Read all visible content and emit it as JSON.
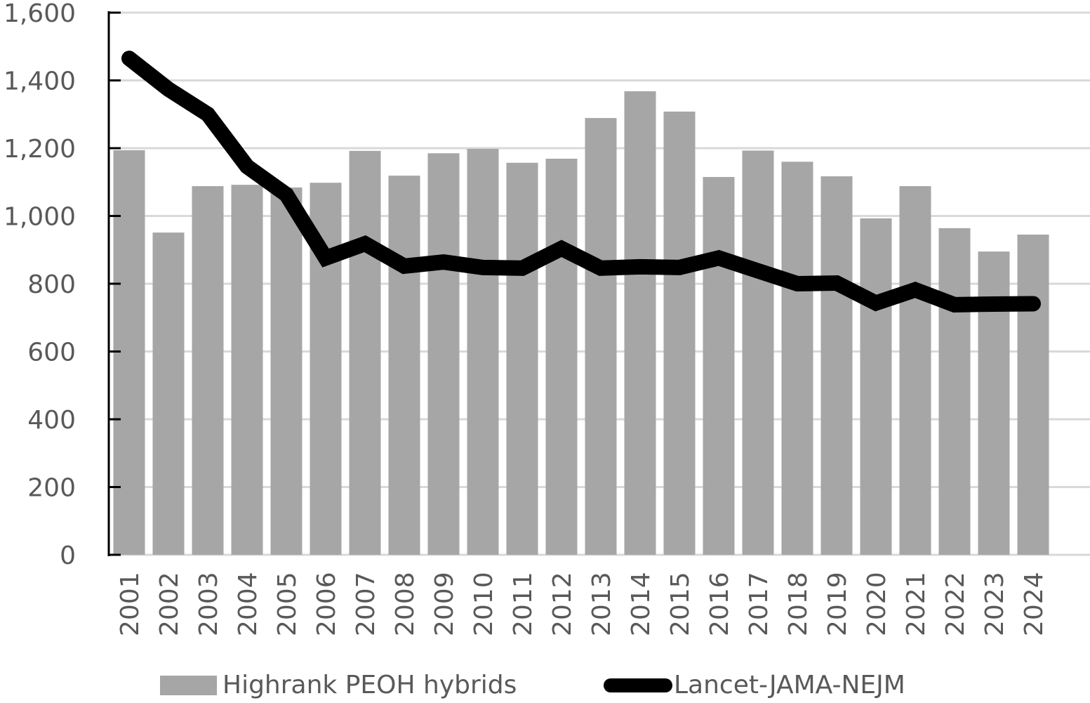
{
  "chart_data": {
    "type": "bar",
    "title": "",
    "xlabel": "",
    "ylabel": "",
    "ylim": [
      0,
      1600
    ],
    "yticks": [
      0,
      200,
      400,
      600,
      800,
      1000,
      1200,
      1400,
      1600
    ],
    "ytick_labels": [
      "0",
      "200",
      "400",
      "600",
      "800",
      "1,000",
      "1,200",
      "1,400",
      "1,600"
    ],
    "grid": true,
    "legend_position": "bottom",
    "categories": [
      "2001",
      "2002",
      "2003",
      "2004",
      "2005",
      "2006",
      "2007",
      "2008",
      "2009",
      "2010",
      "2011",
      "2012",
      "2013",
      "2014",
      "2015",
      "2016",
      "2017",
      "2018",
      "2019",
      "2020",
      "2021",
      "2022",
      "2023",
      "2024"
    ],
    "series": [
      {
        "name": "Highrank PEOH hybrids",
        "type": "bar",
        "color": "#A6A6A6",
        "values": [
          1194,
          951,
          1088,
          1092,
          1084,
          1098,
          1192,
          1119,
          1185,
          1198,
          1157,
          1169,
          1289,
          1368,
          1308,
          1115,
          1193,
          1160,
          1117,
          993,
          1088,
          964,
          895,
          945
        ]
      },
      {
        "name": "Lancet-JAMA-NEJM",
        "type": "line",
        "color": "#000000",
        "values": [
          1465,
          1374,
          1300,
          1146,
          1063,
          876,
          918,
          852,
          864,
          848,
          846,
          904,
          846,
          850,
          848,
          876,
          838,
          800,
          802,
          743,
          782,
          738,
          740,
          741
        ]
      }
    ]
  },
  "colors": {
    "gridline": "#D9D9D9",
    "axis": "#000000",
    "text": "#595959"
  }
}
